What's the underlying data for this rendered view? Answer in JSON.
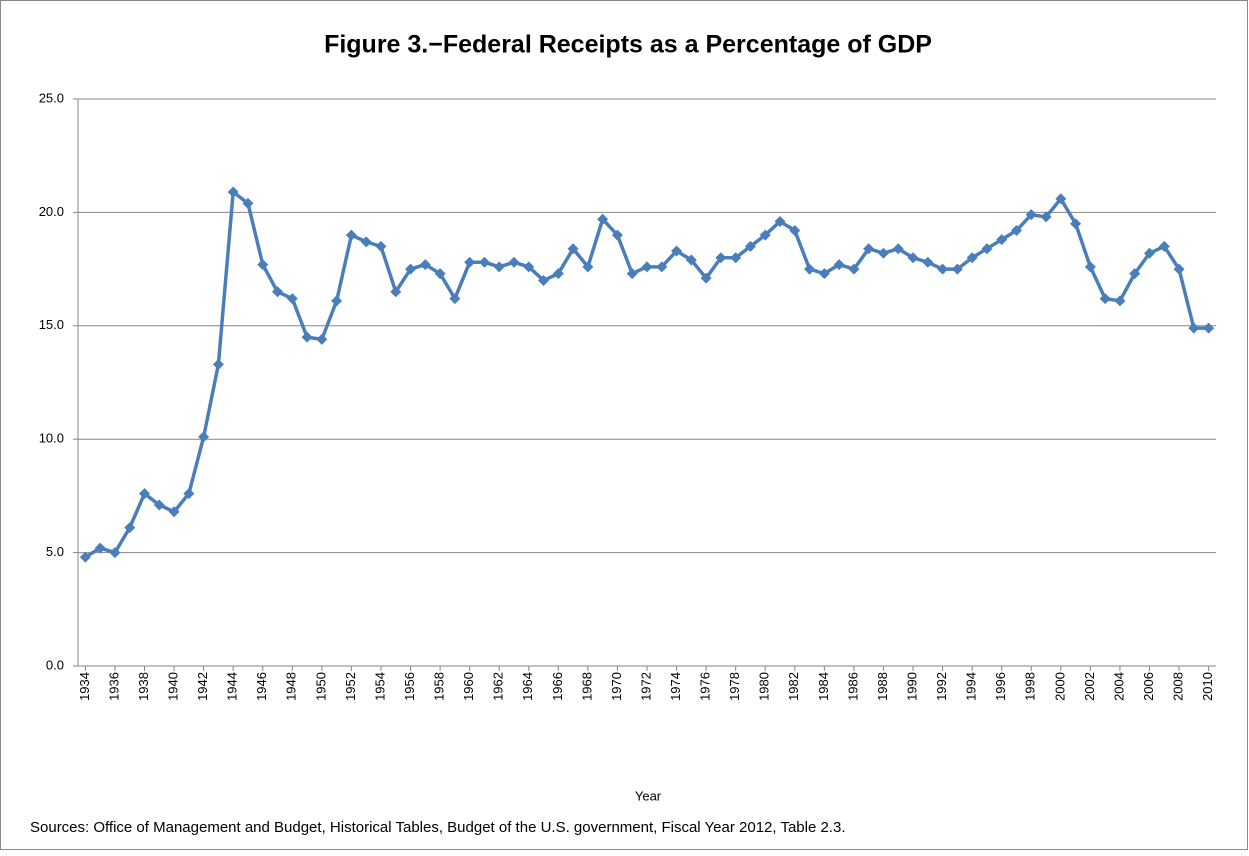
{
  "chart_data": {
    "type": "line",
    "title": "Figure 3.−Federal Receipts as a Percentage of GDP",
    "x_label": "Year",
    "source": "Sources: Office of Management and Budget, Historical Tables, Budget of the U.S. government, Fiscal Year 2012,  Table 2.3.",
    "x": [
      1934,
      1935,
      1936,
      1937,
      1938,
      1939,
      1940,
      1941,
      1942,
      1943,
      1944,
      1945,
      1946,
      1947,
      1948,
      1949,
      1950,
      1951,
      1952,
      1953,
      1954,
      1955,
      1956,
      1957,
      1958,
      1959,
      1960,
      1961,
      1962,
      1963,
      1964,
      1965,
      1966,
      1967,
      1968,
      1969,
      1970,
      1971,
      1972,
      1973,
      1974,
      1975,
      1976,
      1977,
      1978,
      1979,
      1980,
      1981,
      1982,
      1983,
      1984,
      1985,
      1986,
      1987,
      1988,
      1989,
      1990,
      1991,
      1992,
      1993,
      1994,
      1995,
      1996,
      1997,
      1998,
      1999,
      2000,
      2001,
      2002,
      2003,
      2004,
      2005,
      2006,
      2007,
      2008,
      2009,
      2010
    ],
    "values": [
      4.8,
      5.2,
      5.0,
      6.1,
      7.6,
      7.1,
      6.8,
      7.6,
      10.1,
      13.3,
      20.9,
      20.4,
      17.7,
      16.5,
      16.2,
      14.5,
      14.4,
      16.1,
      19.0,
      18.7,
      18.5,
      16.5,
      17.5,
      17.7,
      17.3,
      16.2,
      17.8,
      17.8,
      17.6,
      17.8,
      17.6,
      17.0,
      17.3,
      18.4,
      17.6,
      19.7,
      19.0,
      17.3,
      17.6,
      17.6,
      18.3,
      17.9,
      17.1,
      18.0,
      18.0,
      18.5,
      19.0,
      19.6,
      19.2,
      17.5,
      17.3,
      17.7,
      17.5,
      18.4,
      18.2,
      18.4,
      18.0,
      17.8,
      17.5,
      17.5,
      18.0,
      18.4,
      18.8,
      19.2,
      19.9,
      19.8,
      20.6,
      19.5,
      17.6,
      16.2,
      16.1,
      17.3,
      18.2,
      18.5,
      17.5,
      14.9,
      14.9
    ],
    "color": "#4a7ebb",
    "xlim": [
      1933.5,
      2010.5
    ],
    "xticks": [
      1934,
      1936,
      1938,
      1940,
      1942,
      1944,
      1946,
      1948,
      1950,
      1952,
      1954,
      1956,
      1958,
      1960,
      1962,
      1964,
      1966,
      1968,
      1970,
      1972,
      1974,
      1976,
      1978,
      1980,
      1982,
      1984,
      1986,
      1988,
      1990,
      1992,
      1994,
      1996,
      1998,
      2000,
      2002,
      2004,
      2006,
      2008,
      2010
    ],
    "ylim": [
      0,
      25
    ],
    "yticks": [
      {
        "value": 0,
        "label": "0.0"
      },
      {
        "value": 5,
        "label": "5.0"
      },
      {
        "value": 10,
        "label": "10.0"
      },
      {
        "value": 15,
        "label": "15.0"
      },
      {
        "value": 20,
        "label": "20.0"
      },
      {
        "value": 25,
        "label": "25.0"
      }
    ],
    "grid": true
  }
}
